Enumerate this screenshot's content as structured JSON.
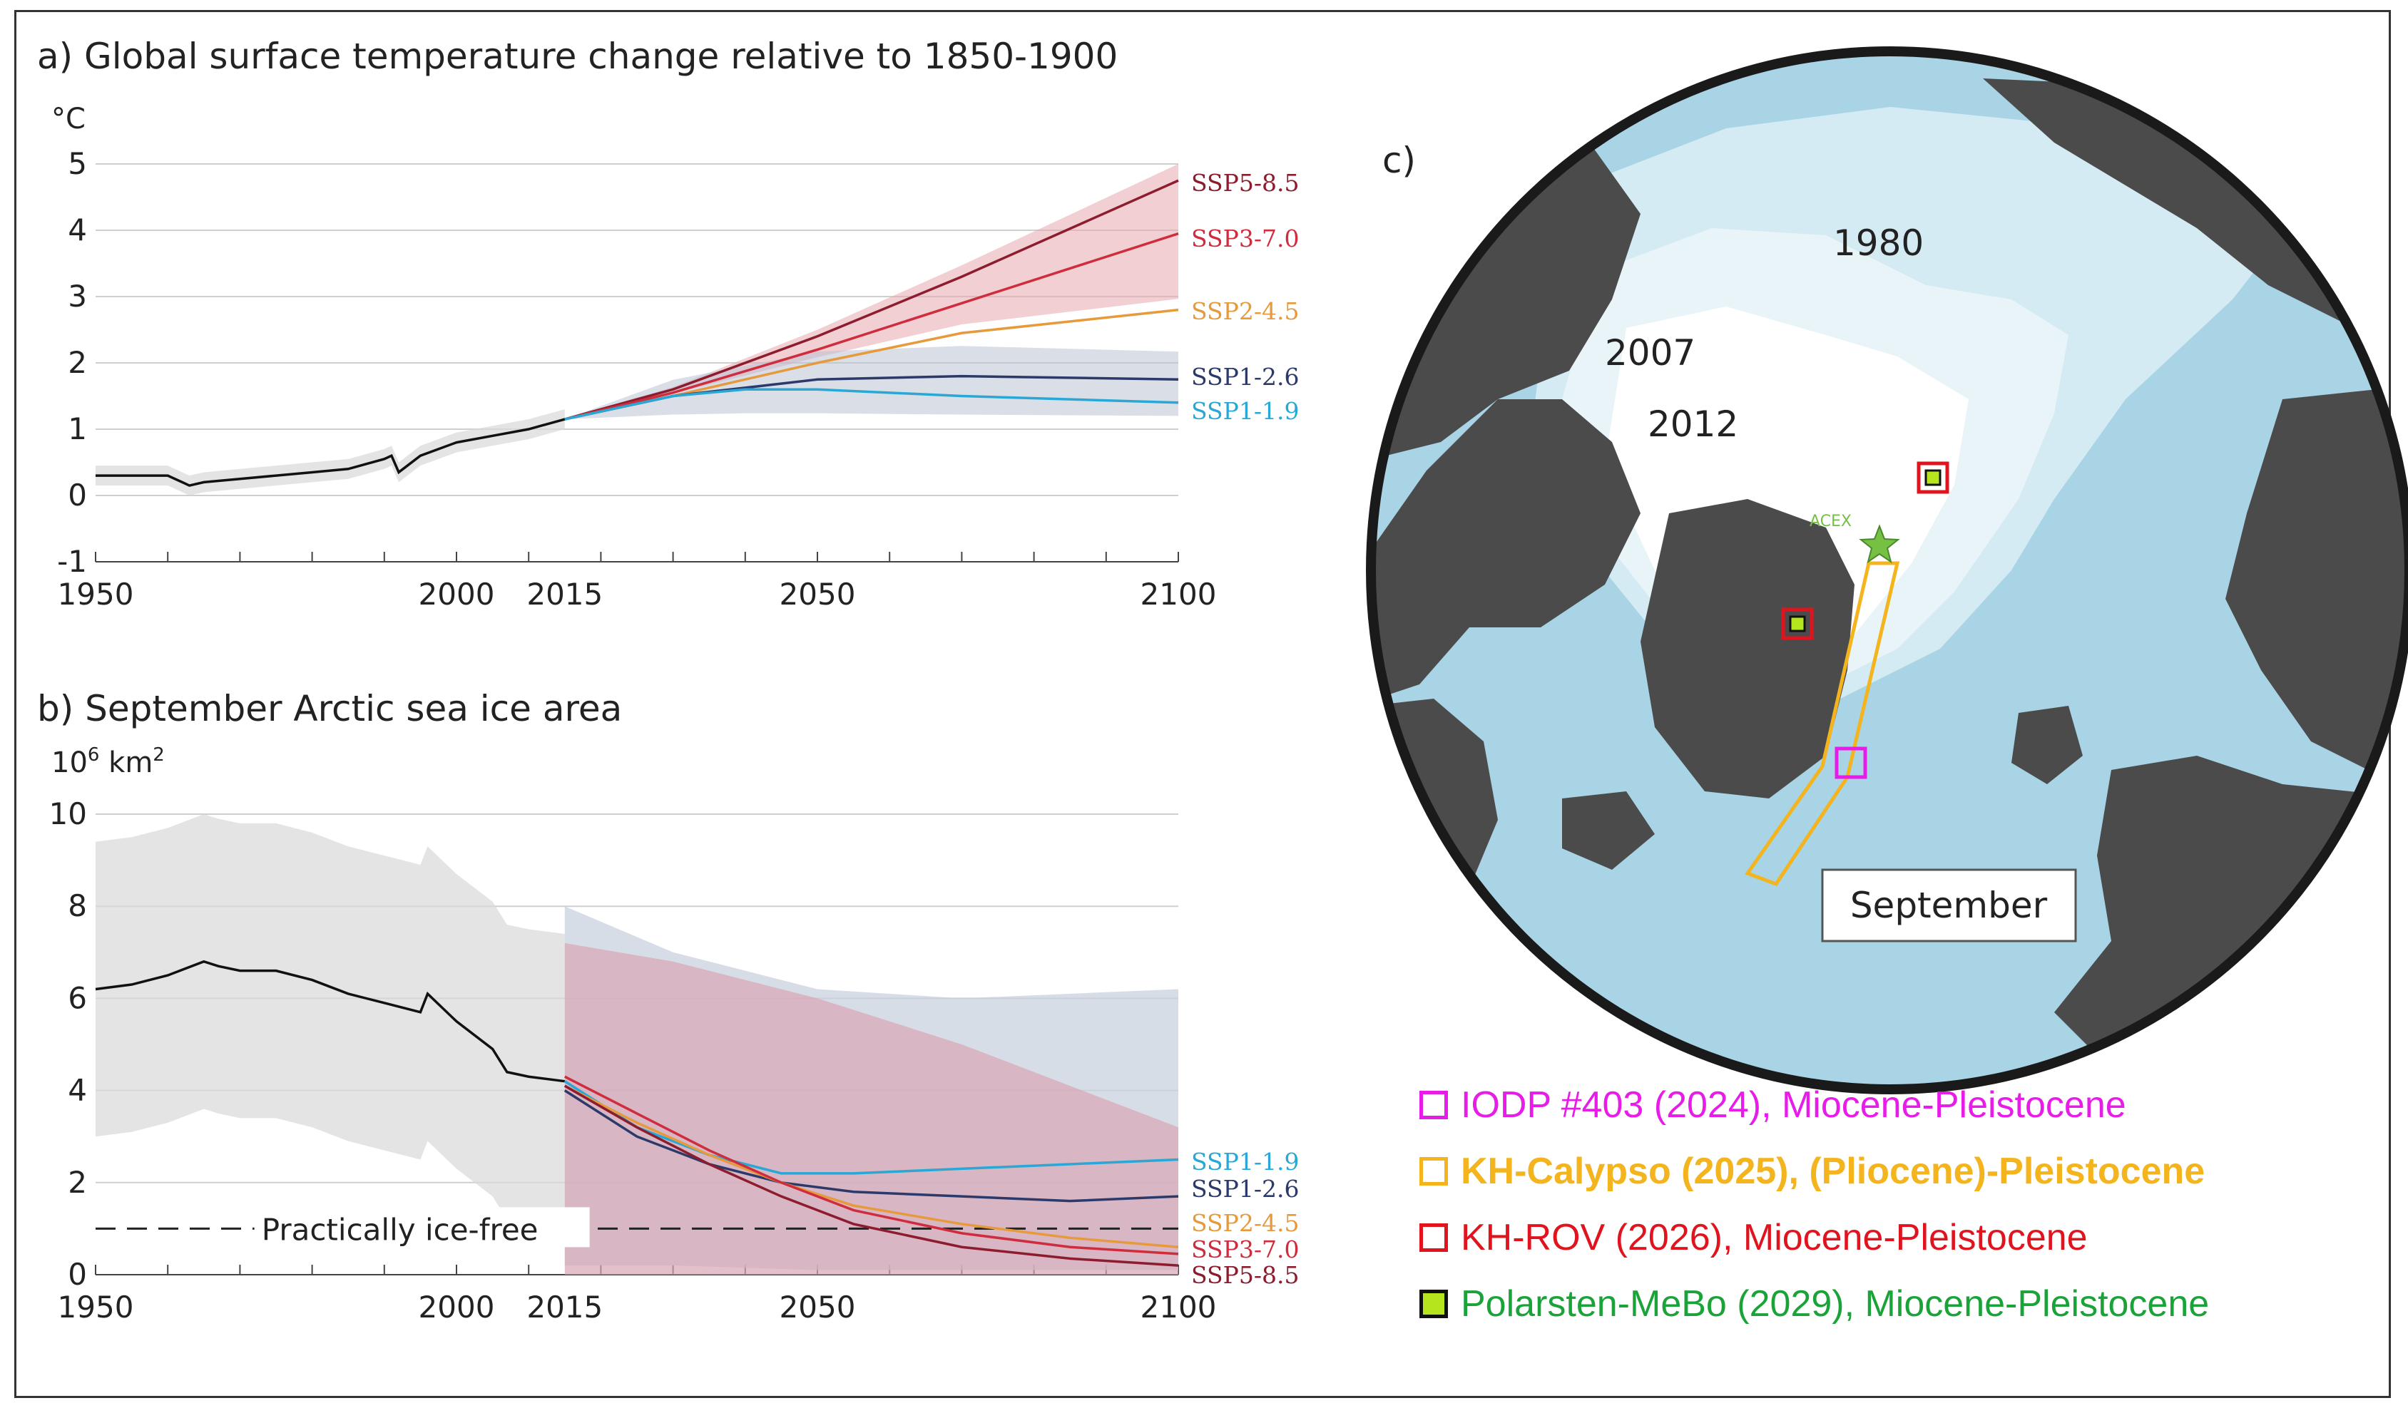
{
  "panel_a": {
    "title": "a) Global surface temperature change relative to 1850-1900",
    "unit": "°C"
  },
  "panel_b": {
    "title": "b) September Arctic sea ice area",
    "unit_main": "10",
    "unit_exp": "6",
    "unit_rest": " km",
    "unit_sq": "2",
    "threshold_label": "Practically ice-free"
  },
  "panel_c": {
    "label": "c)",
    "years": [
      "1980",
      "2007",
      "2012"
    ],
    "site_label": "ACEX",
    "month_label": "September"
  },
  "colors": {
    "ssp585": "#8c1c2e",
    "ssp370": "#cf2d3e",
    "ssp245": "#e69a3c",
    "ssp126": "#2b3a6b",
    "ssp119": "#29a8d6",
    "hist": "#111111",
    "ocean": "#a8d4e6",
    "land": "#4b4b4b"
  },
  "legend": [
    {
      "text": "IODP #403 (2024), Miocene-Pleistocene",
      "color": "#e81ce8",
      "box": "#e81ce8",
      "fill": "none",
      "bold": false
    },
    {
      "text": "KH-Calypso (2025), (Pliocene)-Pleistocene",
      "color": "#f3b41d",
      "box": "#f3b41d",
      "fill": "none",
      "bold": true
    },
    {
      "text": "KH-ROV (2026), Miocene-Pleistocene",
      "color": "#e0141e",
      "box": "#e0141e",
      "fill": "none",
      "bold": false
    },
    {
      "text": "Polarsten-MeBo (2029), Miocene-Pleistocene",
      "color": "#1aa339",
      "box": "#111111",
      "fill": "#b5e61d",
      "bold": false
    }
  ],
  "chart_data": [
    {
      "type": "line",
      "title": "a) Global surface temperature change relative to 1850-1900",
      "ylabel": "°C",
      "xlim": [
        1950,
        2100
      ],
      "ylim": [
        -1,
        5
      ],
      "x_ticks": [
        1950,
        2000,
        2015,
        2050,
        2100
      ],
      "y_ticks": [
        -1,
        0,
        1,
        2,
        3,
        4,
        5
      ],
      "grid": true,
      "historical": {
        "x": [
          1950,
          1955,
          1960,
          1963,
          1965,
          1970,
          1975,
          1980,
          1985,
          1990,
          1991,
          1992,
          1995,
          2000,
          2005,
          2010,
          2015
        ],
        "y": [
          0.3,
          0.3,
          0.3,
          0.15,
          0.2,
          0.25,
          0.3,
          0.35,
          0.4,
          0.55,
          0.6,
          0.35,
          0.6,
          0.8,
          0.9,
          1.0,
          1.15
        ]
      },
      "series": [
        {
          "name": "SSP5-8.5",
          "x": [
            2015,
            2030,
            2050,
            2070,
            2100
          ],
          "y": [
            1.15,
            1.6,
            2.4,
            3.3,
            4.75
          ]
        },
        {
          "name": "SSP3-7.0",
          "x": [
            2015,
            2030,
            2050,
            2070,
            2100
          ],
          "y": [
            1.15,
            1.55,
            2.2,
            2.9,
            3.95
          ]
        },
        {
          "name": "SSP2-4.5",
          "x": [
            2015,
            2030,
            2050,
            2070,
            2100
          ],
          "y": [
            1.15,
            1.5,
            2.0,
            2.45,
            2.8
          ]
        },
        {
          "name": "SSP1-2.6",
          "x": [
            2015,
            2030,
            2050,
            2070,
            2100
          ],
          "y": [
            1.15,
            1.5,
            1.75,
            1.8,
            1.75
          ]
        },
        {
          "name": "SSP1-1.9",
          "x": [
            2015,
            2030,
            2040,
            2050,
            2070,
            2100
          ],
          "y": [
            1.15,
            1.5,
            1.6,
            1.6,
            1.5,
            1.4
          ]
        }
      ]
    },
    {
      "type": "line",
      "title": "b) September Arctic sea ice area",
      "ylabel": "10⁶ km²",
      "xlim": [
        1950,
        2100
      ],
      "ylim": [
        0,
        10
      ],
      "x_ticks": [
        1950,
        2000,
        2015,
        2050,
        2100
      ],
      "y_ticks": [
        0,
        2,
        4,
        6,
        8,
        10
      ],
      "grid": true,
      "threshold": {
        "y": 1,
        "label": "Practically ice-free"
      },
      "historical": {
        "x": [
          1950,
          1955,
          1960,
          1965,
          1967,
          1970,
          1975,
          1980,
          1985,
          1990,
          1995,
          1996,
          2000,
          2005,
          2007,
          2010,
          2015
        ],
        "y": [
          6.2,
          6.3,
          6.5,
          6.8,
          6.7,
          6.6,
          6.6,
          6.4,
          6.1,
          5.9,
          5.7,
          6.1,
          5.5,
          4.9,
          4.4,
          4.3,
          4.2
        ]
      },
      "series": [
        {
          "name": "SSP1-1.9",
          "x": [
            2015,
            2025,
            2035,
            2045,
            2055,
            2070,
            2085,
            2100
          ],
          "y": [
            4.2,
            3.2,
            2.6,
            2.2,
            2.2,
            2.3,
            2.4,
            2.5
          ]
        },
        {
          "name": "SSP1-2.6",
          "x": [
            2015,
            2025,
            2035,
            2045,
            2055,
            2070,
            2085,
            2100
          ],
          "y": [
            4.0,
            3.0,
            2.4,
            2.0,
            1.8,
            1.7,
            1.6,
            1.7
          ]
        },
        {
          "name": "SSP2-4.5",
          "x": [
            2015,
            2025,
            2035,
            2045,
            2055,
            2070,
            2085,
            2100
          ],
          "y": [
            4.1,
            3.3,
            2.6,
            2.0,
            1.5,
            1.1,
            0.8,
            0.6
          ]
        },
        {
          "name": "SSP3-7.0",
          "x": [
            2015,
            2025,
            2035,
            2045,
            2055,
            2070,
            2085,
            2100
          ],
          "y": [
            4.3,
            3.5,
            2.7,
            2.0,
            1.4,
            0.9,
            0.6,
            0.45
          ]
        },
        {
          "name": "SSP5-8.5",
          "x": [
            2015,
            2025,
            2035,
            2045,
            2055,
            2070,
            2085,
            2100
          ],
          "y": [
            4.1,
            3.2,
            2.4,
            1.7,
            1.1,
            0.6,
            0.35,
            0.2
          ]
        }
      ]
    }
  ]
}
